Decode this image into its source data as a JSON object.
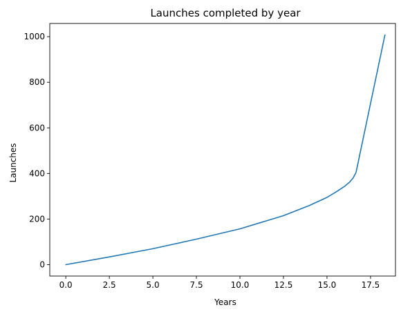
{
  "chart_data": {
    "type": "line",
    "title": "Launches completed by year",
    "xlabel": "Years",
    "ylabel": "Launches",
    "xlim": [
      -0.92,
      19.25
    ],
    "ylim": [
      -50,
      1058
    ],
    "xticks": [
      0.0,
      2.5,
      5.0,
      7.5,
      10.0,
      12.5,
      15.0,
      17.5
    ],
    "xtick_labels": [
      "0.0",
      "2.5",
      "5.0",
      "7.5",
      "10.0",
      "12.5",
      "15.0",
      "17.5"
    ],
    "yticks": [
      0,
      200,
      400,
      600,
      800,
      1000
    ],
    "ytick_labels": [
      "0",
      "200",
      "400",
      "600",
      "800",
      "1000"
    ],
    "grid": false,
    "series": [
      {
        "color": "#1f77b4",
        "x": [
          0,
          2.5,
          5,
          7.5,
          10,
          12.5,
          14,
          15,
          15.5,
          16,
          16.3,
          16.5,
          16.67,
          18.33
        ],
        "y": [
          0,
          34,
          70,
          112,
          157,
          215,
          260,
          295,
          318,
          343,
          362,
          380,
          405,
          1008
        ]
      }
    ]
  }
}
